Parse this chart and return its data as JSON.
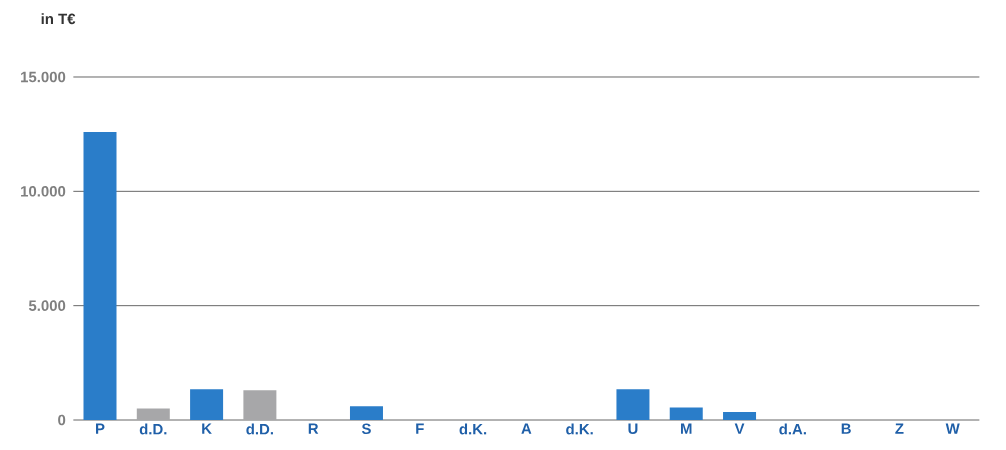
{
  "chart_data": {
    "type": "bar",
    "ylabel": "in T€",
    "categories": [
      "P",
      "d.D.",
      "K",
      "d.D.",
      "R",
      "S",
      "F",
      "d.K.",
      "A",
      "d.K.",
      "U",
      "M",
      "V",
      "d.A.",
      "B",
      "Z",
      "W"
    ],
    "values": [
      12600,
      500,
      1350,
      1300,
      0,
      600,
      0,
      0,
      0,
      0,
      1350,
      550,
      350,
      0,
      0,
      0,
      0
    ],
    "colors": [
      "#2a7dc9",
      "#a7a7a9",
      "#2a7dc9",
      "#a7a7a9",
      "#2a7dc9",
      "#2a7dc9",
      "#2a7dc9",
      "#2a7dc9",
      "#2a7dc9",
      "#2a7dc9",
      "#2a7dc9",
      "#2a7dc9",
      "#2a7dc9",
      "#2a7dc9",
      "#2a7dc9",
      "#2a7dc9",
      "#2a7dc9"
    ],
    "ylim": [
      0,
      15000
    ],
    "yticks": [
      {
        "value": 0,
        "label": "0"
      },
      {
        "value": 5000,
        "label": "5.000"
      },
      {
        "value": 10000,
        "label": "10.000"
      },
      {
        "value": 15000,
        "label": "15.000"
      }
    ],
    "grid": "y"
  }
}
